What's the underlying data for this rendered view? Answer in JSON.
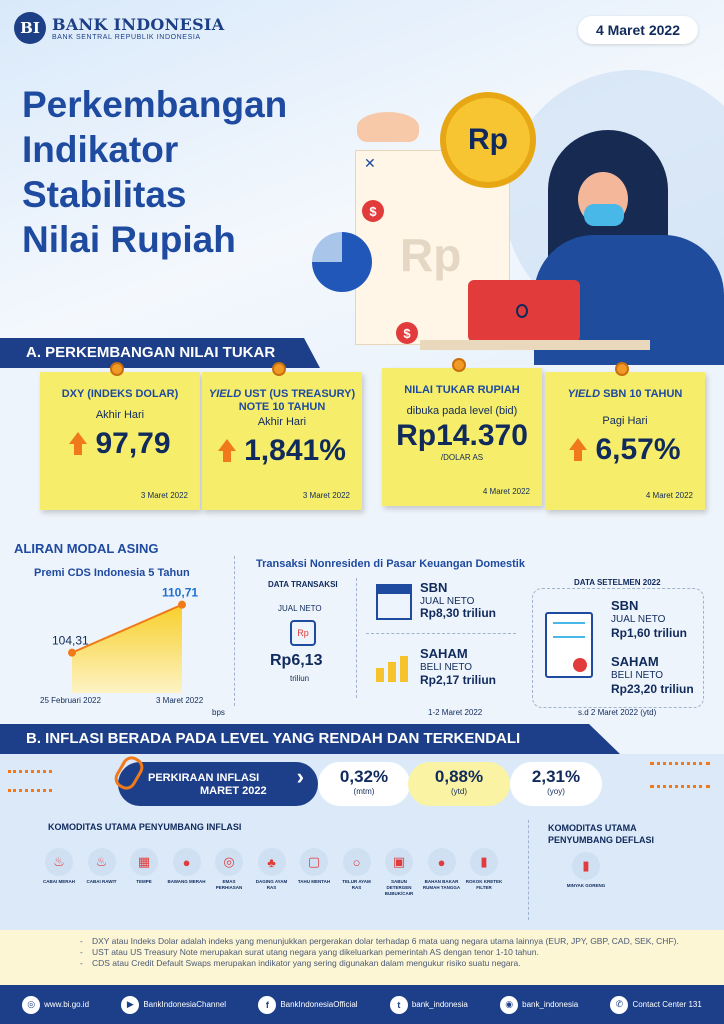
{
  "header": {
    "logo_mark": "BI",
    "bank_name": "BANK INDONESIA",
    "bank_tagline": "BANK SENTRAL REPUBLIK INDONESIA",
    "date": "4 Maret 2022",
    "title_lines": [
      "Perkembangan",
      "Indikator",
      "Stabilitas",
      "Nilai Rupiah"
    ],
    "coin_label": "Rp",
    "bag_label": "Rp",
    "dollar_symbol": "$",
    "close_symbol": "✕"
  },
  "section_a": {
    "title": "A. PERKEMBANGAN NILAI TUKAR",
    "cards": [
      {
        "title": "DXY (INDEKS DOLAR)",
        "subtitle": "Akhir Hari",
        "value": "97,79",
        "date": "3 Maret 2022",
        "trend": "up"
      },
      {
        "title_italic": "YIELD",
        "title_rest": " UST (US TREASURY) NOTE  10 TAHUN",
        "subtitle": "Akhir Hari",
        "value": "1,841%",
        "date": "3 Maret 2022",
        "trend": "up"
      },
      {
        "title": "NILAI TUKAR RUPIAH",
        "subtitle": "dibuka pada level (bid)",
        "value": "Rp14.370",
        "unit": "/DOLAR AS",
        "date": "4 Maret 2022"
      },
      {
        "title_italic": "YIELD",
        "title_rest": " SBN 10 TAHUN",
        "subtitle": "Pagi Hari",
        "value": "6,57%",
        "date": "4 Maret 2022",
        "trend": "up"
      }
    ]
  },
  "capital_flow": {
    "title": "ALIRAN MODAL ASING",
    "cds_title": "Premi CDS Indonesia 5 Tahun",
    "unit": "bps",
    "chart_data": {
      "type": "area",
      "categories": [
        "25 Februari 2022",
        "3 Maret 2022"
      ],
      "values": [
        104.31,
        110.71
      ],
      "value_labels": [
        "104,31",
        "110,71"
      ]
    },
    "nonresident_title": "Transaksi Nonresiden di Pasar Keuangan Domestik",
    "data_transaksi_label": "DATA TRANSAKSI",
    "jual_neto_label": "JUAL NETO",
    "total_value": "Rp6,13",
    "total_unit": "triliun",
    "sbn_label": "SBN",
    "sbn_action": "JUAL NETO",
    "sbn_value": "Rp8,30 triliun",
    "saham_label": "SAHAM",
    "saham_action": "BELI NETO",
    "saham_value": "Rp2,17 triliun",
    "period": "1-2 Maret  2022",
    "settlement_label": "DATA SETELMEN 2022",
    "set_sbn_label": "SBN",
    "set_sbn_action": "JUAL NETO",
    "set_sbn_value": "Rp1,60 triliun",
    "set_saham_label": "SAHAM",
    "set_saham_action": "BELI NETO",
    "set_saham_value": "Rp23,20 triliun",
    "set_period": "s.d 2 Maret 2022 (ytd)"
  },
  "section_b": {
    "title": "B. INFLASI BERADA PADA LEVEL YANG RENDAH DAN TERKENDALI",
    "estimate_label_1": "PERKIRAAN INFLASI",
    "estimate_label_2": "MARET 2022",
    "estimate_arrow": "›",
    "mtm_value": "0,32%",
    "mtm_label": "(mtm)",
    "ytd_value": "0,88%",
    "ytd_label": "(ytd)",
    "yoy_value": "2,31%",
    "yoy_label": "(yoy)",
    "inflation_title": "KOMODITAS UTAMA PENYUMBANG INFLASI",
    "deflation_title_1": "KOMODITAS UTAMA",
    "deflation_title_2": "PENYUMBANG DEFLASI",
    "inflation_items": [
      "CABAI MERAH",
      "CABAI RAWIT",
      "TEMPE",
      "BAWANG MERAH",
      "EMAS PERHIASAN",
      "DAGING AYAM RAS",
      "TAHU MENTAH",
      "TELUR AYAM RAS",
      "SABUN DETERGEN BUBUK/CAIR",
      "BAHAN BAKAR RUMAH TANGGA",
      "ROKOK KRETEK FILTER"
    ],
    "deflation_items": [
      "MINYAK GORENG"
    ]
  },
  "notes": [
    "DXY atau Indeks Dolar adalah indeks yang menunjukkan pergerakan dolar terhadap 6 mata uang negara utama lainnya (EUR, JPY, GBP, CAD, SEK, CHF).",
    "UST atau US Treasury Note merupakan surat utang negara yang dikeluarkan pemerintah AS dengan tenor 1-10 tahun.",
    "CDS atau Credit Default Swaps merupakan indikator yang sering digunakan dalam mengukur risiko suatu negara."
  ],
  "footer": [
    {
      "icon": "globe-icon",
      "glyph": "◎",
      "label": "www.bi.go.id"
    },
    {
      "icon": "youtube-icon",
      "glyph": "▶",
      "label": "BankIndonesiaChannel"
    },
    {
      "icon": "facebook-icon",
      "glyph": "f",
      "label": "BankIndonesiaOfficial"
    },
    {
      "icon": "twitter-icon",
      "glyph": "t",
      "label": "bank_indonesia"
    },
    {
      "icon": "instagram-icon",
      "glyph": "◉",
      "label": "bank_indonesia"
    },
    {
      "icon": "phone-icon",
      "glyph": "✆",
      "label": "Contact Center 131"
    }
  ],
  "colors": {
    "primary": "#1d3f89",
    "accent": "#f07a1a",
    "note": "#f6ee6a"
  }
}
